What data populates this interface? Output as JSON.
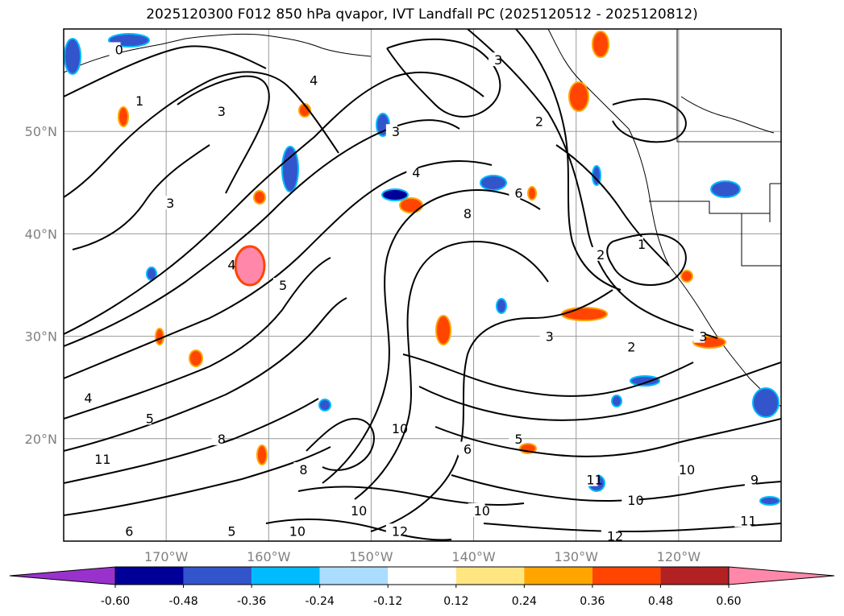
{
  "title": "2025120300 F012 850 hPa qvapor, IVT Landfall PC (2025120512 - 2025120812)",
  "map": {
    "lon_range": [
      -180,
      -110
    ],
    "lat_range": [
      10,
      60
    ],
    "lon_ticks": [
      {
        "lon": -170,
        "label": "170°W"
      },
      {
        "lon": -160,
        "label": "160°W"
      },
      {
        "lon": -150,
        "label": "150°W"
      },
      {
        "lon": -140,
        "label": "140°W"
      },
      {
        "lon": -130,
        "label": "130°W"
      },
      {
        "lon": -120,
        "label": "120°W"
      }
    ],
    "lat_ticks": [
      {
        "lat": 50,
        "label": "50°N"
      },
      {
        "lat": 40,
        "label": "40°N"
      },
      {
        "lat": 30,
        "label": "30°N"
      },
      {
        "lat": 20,
        "label": "20°N"
      }
    ],
    "gridlines": true,
    "contour_labels": [
      {
        "lon": -175,
        "lat": 58,
        "text": "0"
      },
      {
        "lon": -173,
        "lat": 53,
        "text": "1"
      },
      {
        "lon": -156,
        "lat": 55,
        "text": "4"
      },
      {
        "lon": -165,
        "lat": 52,
        "text": "3"
      },
      {
        "lon": -148,
        "lat": 50,
        "text": "3"
      },
      {
        "lon": -138,
        "lat": 57,
        "text": "3"
      },
      {
        "lon": -134,
        "lat": 51,
        "text": "2"
      },
      {
        "lon": -146,
        "lat": 46,
        "text": "4"
      },
      {
        "lon": -170,
        "lat": 43,
        "text": "3"
      },
      {
        "lon": -164,
        "lat": 37,
        "text": "4"
      },
      {
        "lon": -159,
        "lat": 35,
        "text": "5"
      },
      {
        "lon": -141,
        "lat": 42,
        "text": "8"
      },
      {
        "lon": -136,
        "lat": 44,
        "text": "6"
      },
      {
        "lon": -128,
        "lat": 38,
        "text": "2"
      },
      {
        "lon": -124,
        "lat": 39,
        "text": "1"
      },
      {
        "lon": -133,
        "lat": 30,
        "text": "3"
      },
      {
        "lon": -125,
        "lat": 29,
        "text": "2"
      },
      {
        "lon": -118,
        "lat": 30,
        "text": "3"
      },
      {
        "lon": -178,
        "lat": 24,
        "text": "4"
      },
      {
        "lon": -172,
        "lat": 22,
        "text": "5"
      },
      {
        "lon": -165,
        "lat": 20,
        "text": "8"
      },
      {
        "lon": -177,
        "lat": 18,
        "text": "11"
      },
      {
        "lon": -157,
        "lat": 17,
        "text": "8"
      },
      {
        "lon": -148,
        "lat": 21,
        "text": "10"
      },
      {
        "lon": -141,
        "lat": 19,
        "text": "6"
      },
      {
        "lon": -136,
        "lat": 20,
        "text": "5"
      },
      {
        "lon": -129,
        "lat": 16,
        "text": "11"
      },
      {
        "lon": -120,
        "lat": 17,
        "text": "10"
      },
      {
        "lon": -125,
        "lat": 14,
        "text": "10"
      },
      {
        "lon": -152,
        "lat": 13,
        "text": "10"
      },
      {
        "lon": -140,
        "lat": 13,
        "text": "10"
      },
      {
        "lon": -127,
        "lat": 10.5,
        "text": "12"
      },
      {
        "lon": -164,
        "lat": 11,
        "text": "5"
      },
      {
        "lon": -158,
        "lat": 11,
        "text": "10"
      },
      {
        "lon": -148,
        "lat": 11,
        "text": "12"
      },
      {
        "lon": -174,
        "lat": 11,
        "text": "6"
      },
      {
        "lon": -114,
        "lat": 12,
        "text": "11"
      },
      {
        "lon": -113,
        "lat": 16,
        "text": "9"
      }
    ]
  },
  "colorbar": {
    "labels": [
      "-0.60",
      "-0.48",
      "-0.36",
      "-0.24",
      "-0.12",
      "0.12",
      "0.24",
      "0.36",
      "0.48",
      "0.60"
    ],
    "colors": [
      "#9932cc",
      "#000099",
      "#3355cc",
      "#00bbff",
      "#aaddff",
      "#ffffff",
      "#ffe680",
      "#ffa500",
      "#ff4500",
      "#b22222",
      "#ff88aa"
    ]
  }
}
